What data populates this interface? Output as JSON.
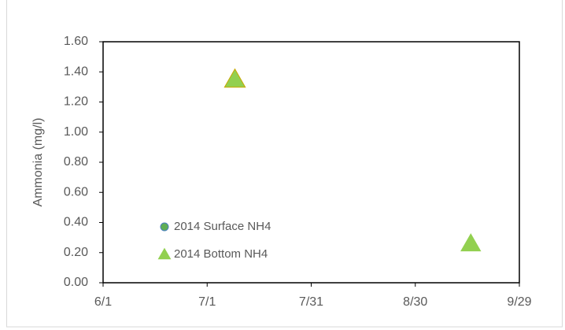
{
  "chart_data": {
    "type": "scatter",
    "y_label": "Ammonia  (mg/l)",
    "series": [
      {
        "name": "2014 Surface NH4",
        "color": "#5fae55",
        "edge": "#4a7fc1",
        "marker": "circle",
        "x": [
          "7/9"
        ],
        "values": [
          1.35
        ]
      },
      {
        "name": "2014 Bottom NH4",
        "color": "#92d050",
        "edge": "#c9a800",
        "marker": "triangle",
        "x": [
          "7/9",
          "9/15"
        ],
        "values": [
          1.35,
          0.26
        ]
      }
    ],
    "xlim": [
      "6/1",
      "9/29"
    ],
    "xticks": [
      "6/1",
      "7/1",
      "7/31",
      "8/30",
      "9/29"
    ],
    "ylim": [
      0,
      1.6
    ],
    "yticks": [
      {
        "value": 0,
        "label": "0.00"
      },
      {
        "value": 0.2,
        "label": "0.20"
      },
      {
        "value": 0.4,
        "label": "0.40"
      },
      {
        "value": 0.6,
        "label": "0.60"
      },
      {
        "value": 0.8,
        "label": "0.80"
      },
      {
        "value": 1.0,
        "label": "1.00"
      },
      {
        "value": 1.2,
        "label": "1.20"
      },
      {
        "value": 1.4,
        "label": "1.40"
      },
      {
        "value": 1.6,
        "label": "1.60"
      }
    ],
    "legend": "lower-left"
  }
}
